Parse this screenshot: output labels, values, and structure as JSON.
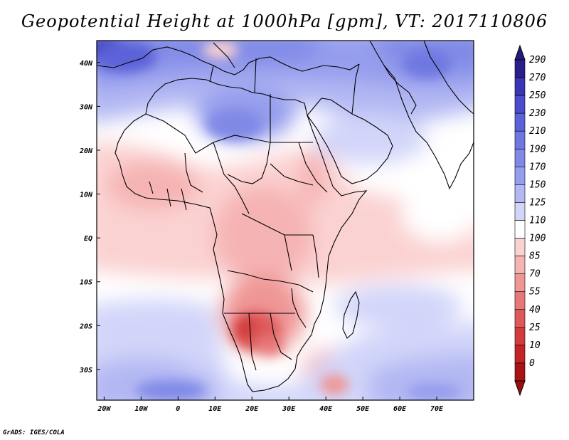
{
  "title": "Geopotential Height at 1000hPa [gpm], VT: 2017110806",
  "credit": "GrADS: IGES/COLA",
  "map": {
    "lon_range": [
      -22,
      80
    ],
    "lat_range": [
      -37,
      45
    ],
    "x_ticks": [
      {
        "value": -20,
        "label": "20W"
      },
      {
        "value": -10,
        "label": "10W"
      },
      {
        "value": 0,
        "label": "0"
      },
      {
        "value": 10,
        "label": "10E"
      },
      {
        "value": 20,
        "label": "20E"
      },
      {
        "value": 30,
        "label": "30E"
      },
      {
        "value": 40,
        "label": "40E"
      },
      {
        "value": 50,
        "label": "50E"
      },
      {
        "value": 60,
        "label": "60E"
      },
      {
        "value": 70,
        "label": "70E"
      }
    ],
    "y_ticks": [
      {
        "value": 40,
        "label": "40N"
      },
      {
        "value": 30,
        "label": "30N"
      },
      {
        "value": 20,
        "label": "20N"
      },
      {
        "value": 10,
        "label": "10N"
      },
      {
        "value": 0,
        "label": "EQ"
      },
      {
        "value": -10,
        "label": "10S"
      },
      {
        "value": -20,
        "label": "20S"
      },
      {
        "value": -30,
        "label": "30S"
      }
    ]
  },
  "colorbar": {
    "levels": [
      "290",
      "270",
      "250",
      "230",
      "210",
      "190",
      "170",
      "150",
      "125",
      "110",
      "100",
      "85",
      "70",
      "55",
      "40",
      "25",
      "10",
      "0"
    ],
    "colors": [
      "#2a1e8c",
      "#3a35b4",
      "#4b4bcc",
      "#5c62d8",
      "#6e78e0",
      "#8089e6",
      "#959ded",
      "#b3b8f3",
      "#d2d5f9",
      "#ffffff",
      "#fbd2d2",
      "#f6b3b3",
      "#ef9696",
      "#e77878",
      "#de5a5a",
      "#d23c3c",
      "#c42424",
      "#a81414"
    ],
    "top_color": "#241a80",
    "bottom_color": "#9a0e0e"
  }
}
